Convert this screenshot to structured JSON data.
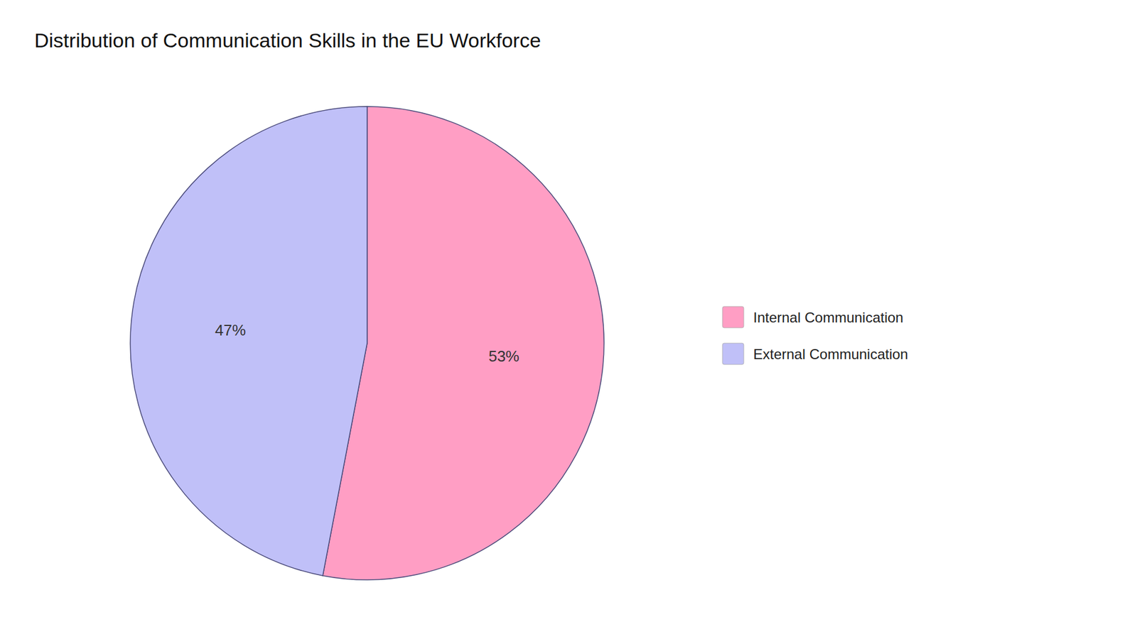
{
  "chart_data": {
    "type": "pie",
    "title": "Distribution of Communication Skills in the EU Workforce",
    "categories": [
      "Internal Communication",
      "External Communication"
    ],
    "values": [
      53,
      47
    ],
    "value_labels": [
      "53%",
      "47%"
    ],
    "colors": [
      "#FF9EC4",
      "#C0C0F8"
    ],
    "data_labels": true,
    "legend": "right"
  }
}
